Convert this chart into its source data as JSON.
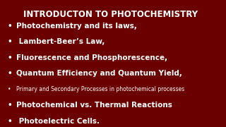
{
  "title": "INTRODUCTON TO PHOTOCHEMISTRY",
  "background_color": "#6B0000",
  "title_color": "#FFFFFF",
  "text_color": "#FFFFFF",
  "title_fontsize": 8.5,
  "bullet_items": [
    {
      "text": "Photochemistry and its laws,",
      "fontsize": 7.5,
      "bold": true
    },
    {
      "text": " Lambert-Beer’s Law,",
      "fontsize": 7.5,
      "bold": true
    },
    {
      "text": "Fluorescence and Phosphorescence,",
      "fontsize": 7.5,
      "bold": true
    },
    {
      "text": "Quantum Efficiency and Quantum Yield,",
      "fontsize": 7.5,
      "bold": true
    },
    {
      "text": "Primary and Secondary Processes in photochemical processes",
      "fontsize": 5.5,
      "bold": false
    },
    {
      "text": "Photochemical vs. Thermal Reactions",
      "fontsize": 7.5,
      "bold": true
    },
    {
      "text": " Photoelectric Cells.",
      "fontsize": 7.5,
      "bold": true
    }
  ]
}
